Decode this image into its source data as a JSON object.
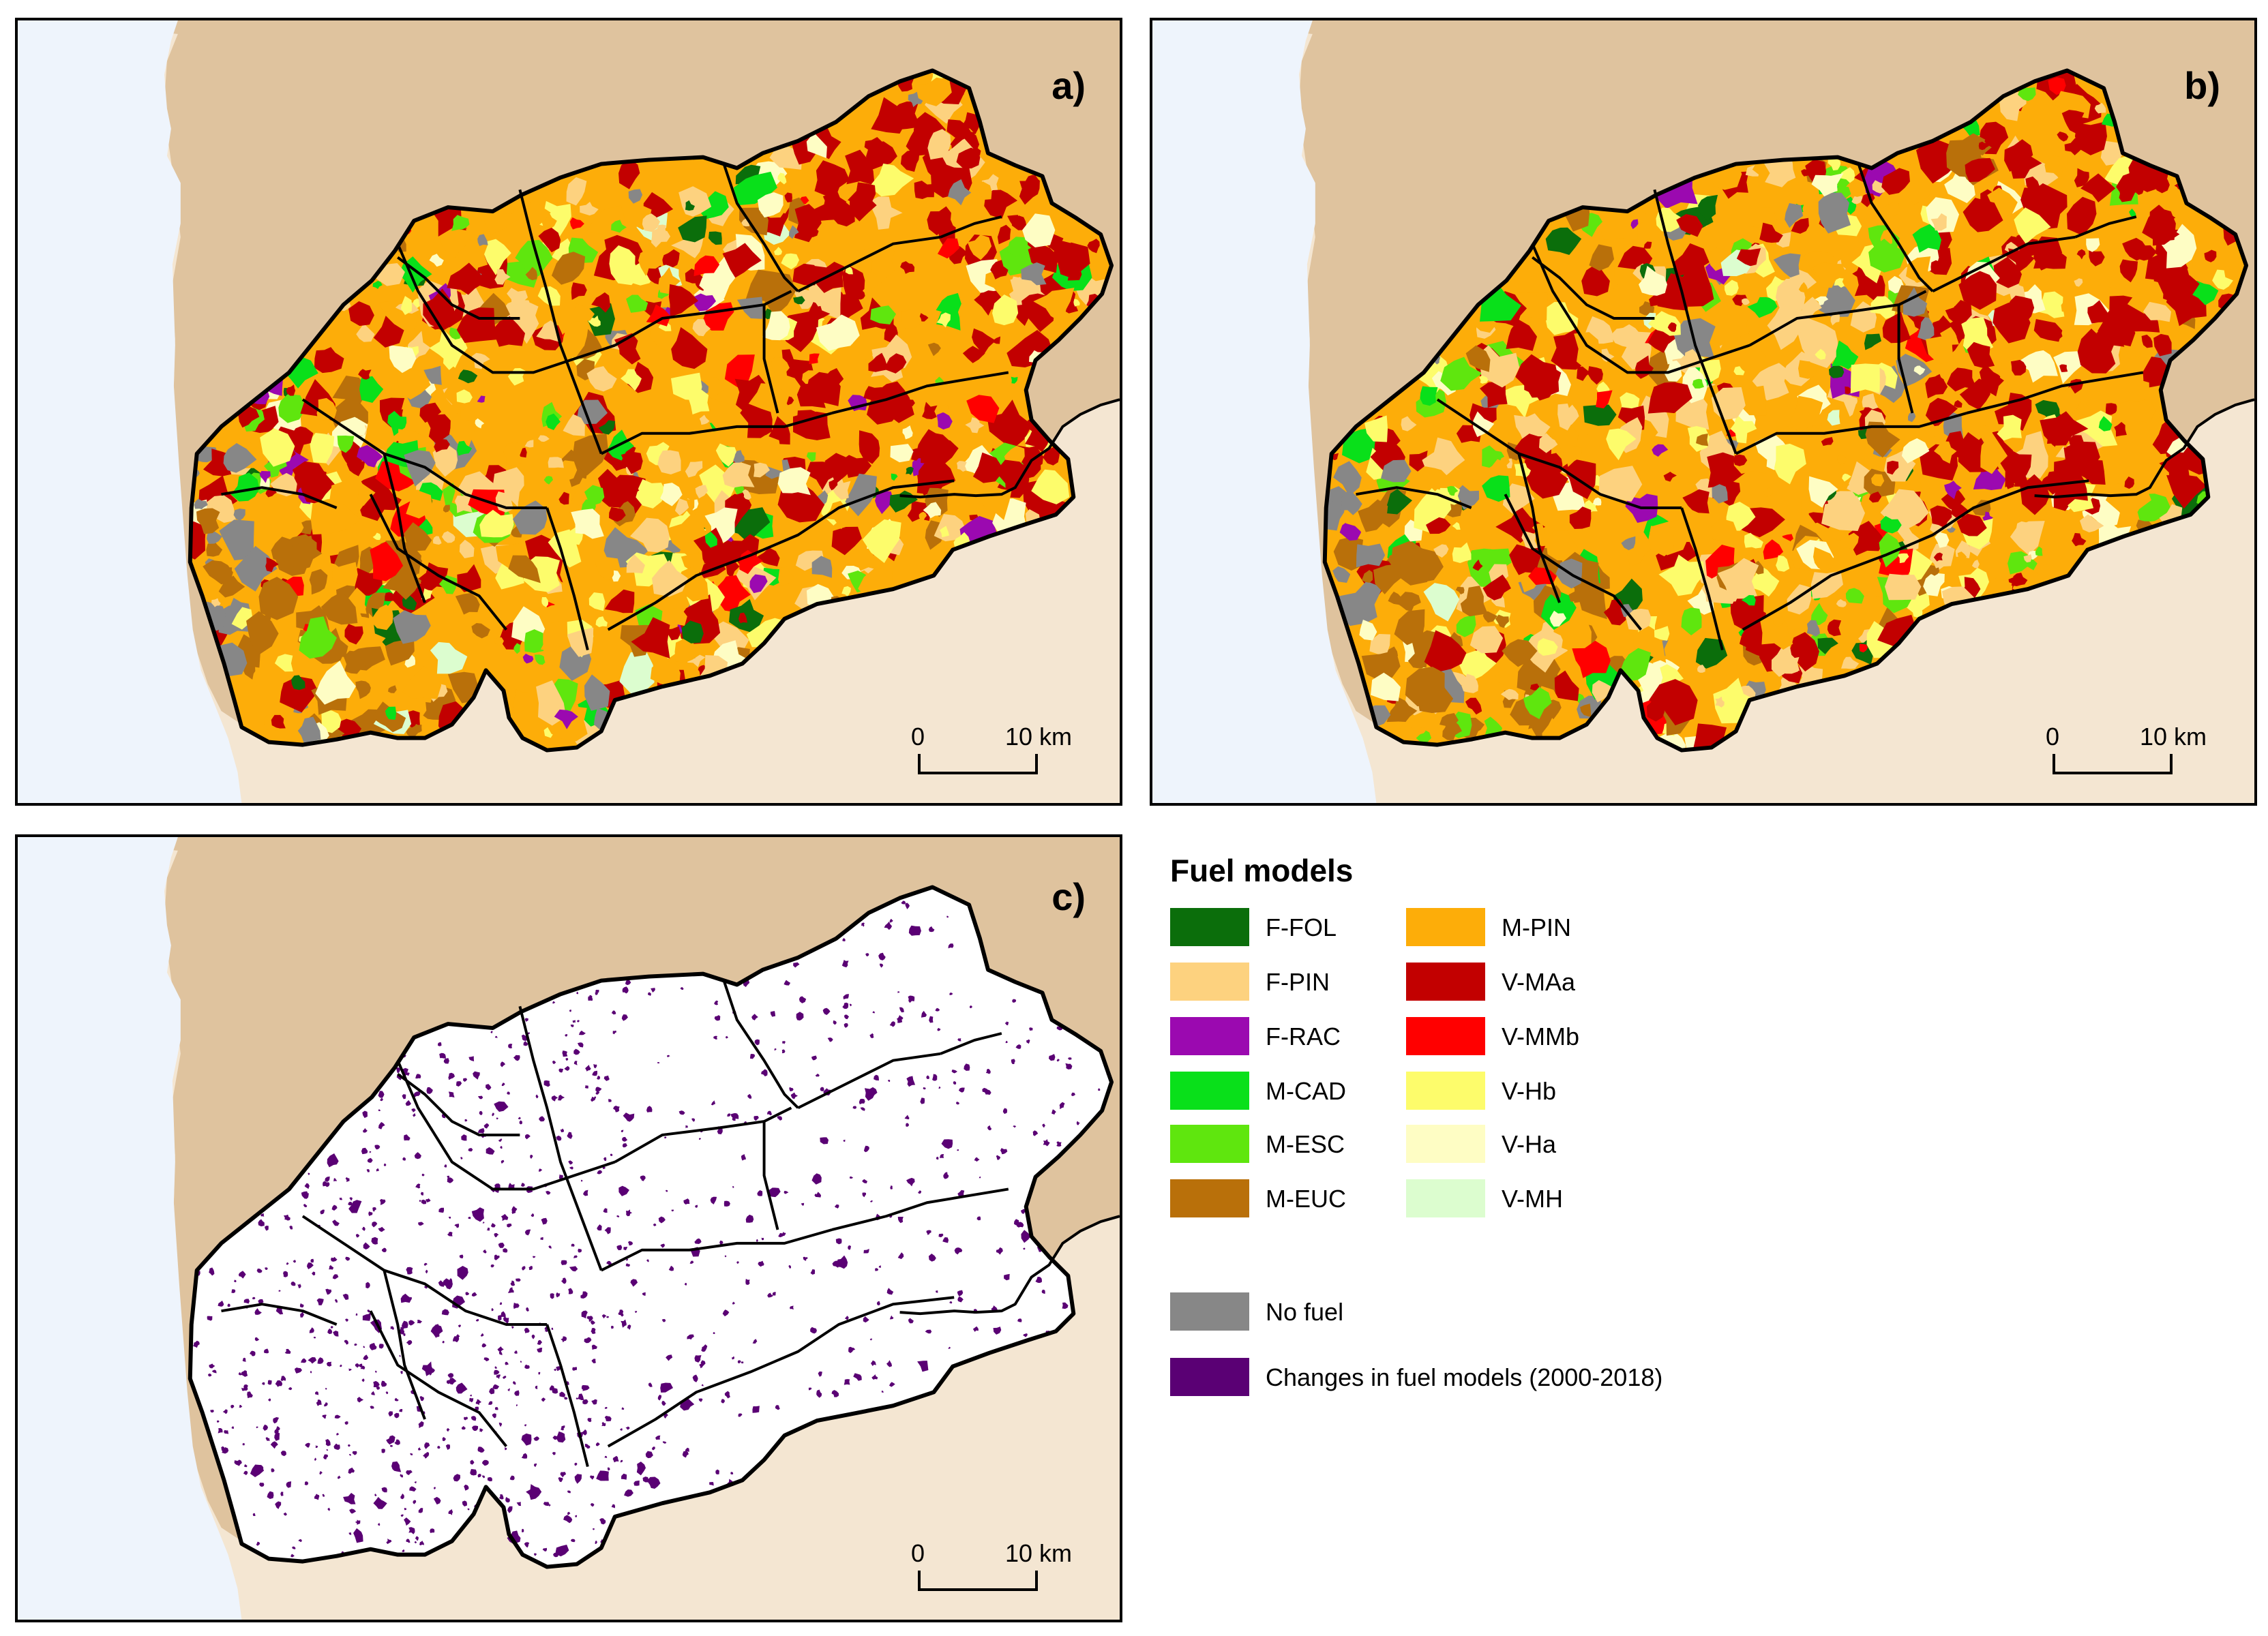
{
  "panels": [
    {
      "label": "a)",
      "kind": "fuel"
    },
    {
      "label": "b)",
      "kind": "fuel"
    },
    {
      "label": "c)",
      "kind": "changes"
    }
  ],
  "scalebar": {
    "start": "0",
    "end": "10 km"
  },
  "colors": {
    "sea": "#eef4fc",
    "land_north": "#dfc39e",
    "land_south": "#f4e6d2",
    "region_bg_changes": "#ffffff",
    "border": "#000000"
  },
  "legend": {
    "title": "Fuel models",
    "left_column": [
      {
        "label": "F-FOL",
        "color": "#0b6e0b"
      },
      {
        "label": "F-PIN",
        "color": "#fdd27f"
      },
      {
        "label": "F-RAC",
        "color": "#9b09b0"
      },
      {
        "label": "M-CAD",
        "color": "#09e01a"
      },
      {
        "label": "M-ESC",
        "color": "#5fe60e"
      },
      {
        "label": "M-EUC",
        "color": "#b9700a"
      }
    ],
    "right_column": [
      {
        "label": "M-PIN",
        "color": "#fdad09"
      },
      {
        "label": "V-MAa",
        "color": "#c20000"
      },
      {
        "label": "V-MMb",
        "color": "#ff0000"
      },
      {
        "label": "V-Hb",
        "color": "#fdfc6b"
      },
      {
        "label": "V-Ha",
        "color": "#fefdc4"
      },
      {
        "label": "V-MH",
        "color": "#dcfdcf"
      }
    ],
    "extra": [
      {
        "label": "No fuel",
        "color": "#878787"
      },
      {
        "label": "Changes in fuel models (2000-2018)",
        "color": "#5a0074"
      }
    ]
  }
}
